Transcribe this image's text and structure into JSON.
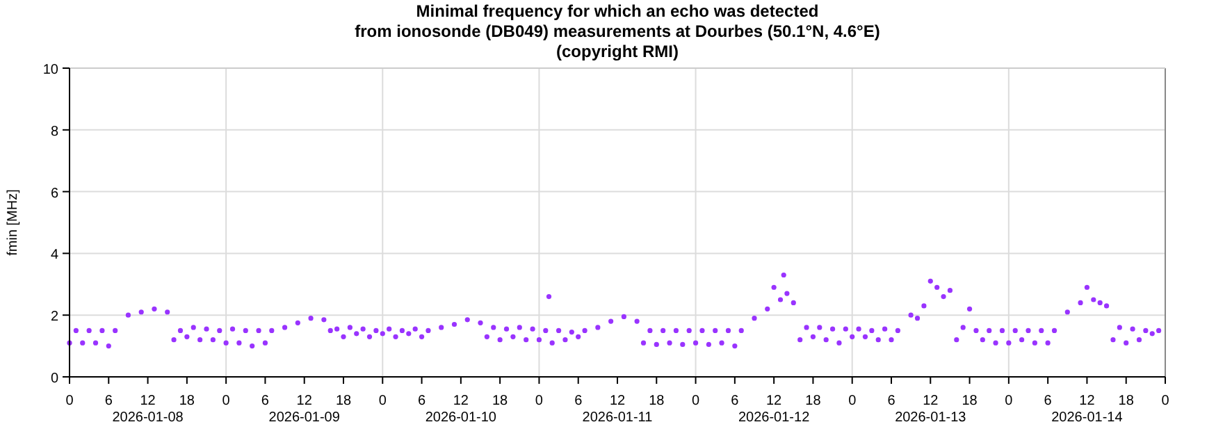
{
  "chart_data": {
    "type": "scatter",
    "title": "Minimal frequency for which an echo was detected\nfrom ionosonde (DB049) measurements at Dourbes (50.1°N, 4.6°E)\n(copyright RMI)",
    "ylabel": "fmin [MHz]",
    "xlim": [
      "2026-01-08T00:00",
      "2026-01-15T00:00"
    ],
    "ylim": [
      0,
      10
    ],
    "yticks": [
      0,
      2,
      4,
      6,
      8,
      10
    ],
    "xticks": [
      {
        "value": "2026-01-08T00:00",
        "label": "0"
      },
      {
        "value": "2026-01-08T06:00",
        "label": "6"
      },
      {
        "value": "2026-01-08T12:00",
        "label": "12\n2026-01-08"
      },
      {
        "value": "2026-01-08T18:00",
        "label": "18"
      },
      {
        "value": "2026-01-09T00:00",
        "label": "0"
      },
      {
        "value": "2026-01-09T06:00",
        "label": "6"
      },
      {
        "value": "2026-01-09T12:00",
        "label": "12\n2026-01-09"
      },
      {
        "value": "2026-01-09T18:00",
        "label": "18"
      },
      {
        "value": "2026-01-10T00:00",
        "label": "0"
      },
      {
        "value": "2026-01-10T06:00",
        "label": "6"
      },
      {
        "value": "2026-01-10T12:00",
        "label": "12\n2026-01-10"
      },
      {
        "value": "2026-01-10T18:00",
        "label": "18"
      },
      {
        "value": "2026-01-11T00:00",
        "label": "0"
      },
      {
        "value": "2026-01-11T06:00",
        "label": "6"
      },
      {
        "value": "2026-01-11T12:00",
        "label": "12\n2026-01-11"
      },
      {
        "value": "2026-01-11T18:00",
        "label": "18"
      },
      {
        "value": "2026-01-12T00:00",
        "label": "0"
      },
      {
        "value": "2026-01-12T06:00",
        "label": "6"
      },
      {
        "value": "2026-01-12T12:00",
        "label": "12\n2026-01-12"
      },
      {
        "value": "2026-01-12T18:00",
        "label": "18"
      },
      {
        "value": "2026-01-13T00:00",
        "label": "0"
      },
      {
        "value": "2026-01-13T06:00",
        "label": "6"
      },
      {
        "value": "2026-01-13T12:00",
        "label": "12\n2026-01-13"
      },
      {
        "value": "2026-01-13T18:00",
        "label": "18"
      },
      {
        "value": "2026-01-14T00:00",
        "label": "0"
      },
      {
        "value": "2026-01-14T06:00",
        "label": "6"
      },
      {
        "value": "2026-01-14T12:00",
        "label": "12\n2026-01-14"
      },
      {
        "value": "2026-01-14T18:00",
        "label": "18"
      },
      {
        "value": "2026-01-15T00:00",
        "label": "0"
      }
    ],
    "grid": true,
    "marker": "circle",
    "series": [
      {
        "color": "#9933ff",
        "x": [
          "2026-01-08T01:00",
          "2026-01-08T03:00",
          "2026-01-08T05:00",
          "2026-01-08T07:00",
          "2026-01-08T09:00",
          "2026-01-08T11:00",
          "2026-01-08T13:00",
          "2026-01-08T15:00",
          "2026-01-08T17:00",
          "2026-01-08T19:00",
          "2026-01-08T21:00",
          "2026-01-08T23:00",
          "2026-01-08T00:00",
          "2026-01-08T02:00",
          "2026-01-08T04:00",
          "2026-01-08T06:00",
          "2026-01-08T16:00",
          "2026-01-08T18:00",
          "2026-01-08T20:00",
          "2026-01-08T22:00",
          "2026-01-09T01:00",
          "2026-01-09T03:00",
          "2026-01-09T05:00",
          "2026-01-09T07:00",
          "2026-01-09T09:00",
          "2026-01-09T11:00",
          "2026-01-09T13:00",
          "2026-01-09T15:00",
          "2026-01-09T17:00",
          "2026-01-09T19:00",
          "2026-01-09T21:00",
          "2026-01-09T23:00",
          "2026-01-09T00:00",
          "2026-01-09T02:00",
          "2026-01-09T04:00",
          "2026-01-09T06:00",
          "2026-01-09T16:00",
          "2026-01-09T18:00",
          "2026-01-09T20:00",
          "2026-01-09T22:00",
          "2026-01-10T01:00",
          "2026-01-10T03:00",
          "2026-01-10T05:00",
          "2026-01-10T07:00",
          "2026-01-10T09:00",
          "2026-01-10T11:00",
          "2026-01-10T13:00",
          "2026-01-10T15:00",
          "2026-01-10T17:00",
          "2026-01-10T19:00",
          "2026-01-10T21:00",
          "2026-01-10T23:00",
          "2026-01-10T00:00",
          "2026-01-10T02:00",
          "2026-01-10T04:00",
          "2026-01-10T06:00",
          "2026-01-10T16:00",
          "2026-01-10T18:00",
          "2026-01-10T20:00",
          "2026-01-10T22:00",
          "2026-01-11T01:00",
          "2026-01-11T03:00",
          "2026-01-11T05:00",
          "2026-01-11T07:00",
          "2026-01-11T09:00",
          "2026-01-11T11:00",
          "2026-01-11T13:00",
          "2026-01-11T15:00",
          "2026-01-11T17:00",
          "2026-01-11T19:00",
          "2026-01-11T21:00",
          "2026-01-11T23:00",
          "2026-01-11T00:00",
          "2026-01-11T02:00",
          "2026-01-11T04:00",
          "2026-01-11T06:00",
          "2026-01-11T16:00",
          "2026-01-11T18:00",
          "2026-01-11T20:00",
          "2026-01-11T22:00",
          "2026-01-11T01:30",
          "2026-01-12T01:00",
          "2026-01-12T03:00",
          "2026-01-12T05:00",
          "2026-01-12T07:00",
          "2026-01-12T09:00",
          "2026-01-12T11:00",
          "2026-01-12T13:00",
          "2026-01-12T15:00",
          "2026-01-12T17:00",
          "2026-01-12T19:00",
          "2026-01-12T21:00",
          "2026-01-12T23:00",
          "2026-01-12T00:00",
          "2026-01-12T02:00",
          "2026-01-12T04:00",
          "2026-01-12T06:00",
          "2026-01-12T16:00",
          "2026-01-12T18:00",
          "2026-01-12T20:00",
          "2026-01-12T22:00",
          "2026-01-12T12:00",
          "2026-01-12T13:30",
          "2026-01-12T14:00",
          "2026-01-13T01:00",
          "2026-01-13T03:00",
          "2026-01-13T05:00",
          "2026-01-13T07:00",
          "2026-01-13T09:00",
          "2026-01-13T11:00",
          "2026-01-13T13:00",
          "2026-01-13T15:00",
          "2026-01-13T17:00",
          "2026-01-13T19:00",
          "2026-01-13T21:00",
          "2026-01-13T23:00",
          "2026-01-13T00:00",
          "2026-01-13T02:00",
          "2026-01-13T04:00",
          "2026-01-13T06:00",
          "2026-01-13T16:00",
          "2026-01-13T18:00",
          "2026-01-13T20:00",
          "2026-01-13T22:00",
          "2026-01-13T12:00",
          "2026-01-13T14:00",
          "2026-01-13T10:00",
          "2026-01-14T01:00",
          "2026-01-14T03:00",
          "2026-01-14T05:00",
          "2026-01-14T07:00",
          "2026-01-14T09:00",
          "2026-01-14T11:00",
          "2026-01-14T13:00",
          "2026-01-14T15:00",
          "2026-01-14T17:00",
          "2026-01-14T19:00",
          "2026-01-14T21:00",
          "2026-01-14T23:00",
          "2026-01-14T00:00",
          "2026-01-14T02:00",
          "2026-01-14T04:00",
          "2026-01-14T06:00",
          "2026-01-14T16:00",
          "2026-01-14T18:00",
          "2026-01-14T20:00",
          "2026-01-14T22:00",
          "2026-01-14T12:00",
          "2026-01-14T14:00"
        ],
        "values": [
          1.5,
          1.5,
          1.5,
          1.5,
          2.0,
          2.1,
          2.2,
          2.1,
          1.5,
          1.6,
          1.55,
          1.5,
          1.1,
          1.1,
          1.1,
          1.0,
          1.2,
          1.3,
          1.2,
          1.2,
          1.55,
          1.5,
          1.5,
          1.5,
          1.6,
          1.75,
          1.9,
          1.85,
          1.55,
          1.6,
          1.55,
          1.5,
          1.1,
          1.1,
          1.0,
          1.1,
          1.5,
          1.3,
          1.4,
          1.3,
          1.55,
          1.5,
          1.55,
          1.5,
          1.6,
          1.7,
          1.85,
          1.75,
          1.6,
          1.55,
          1.6,
          1.55,
          1.4,
          1.3,
          1.4,
          1.3,
          1.3,
          1.2,
          1.3,
          1.2,
          1.5,
          1.5,
          1.45,
          1.5,
          1.6,
          1.8,
          1.95,
          1.8,
          1.5,
          1.5,
          1.5,
          1.5,
          1.2,
          1.1,
          1.2,
          1.3,
          1.1,
          1.05,
          1.1,
          1.05,
          2.6,
          1.5,
          1.5,
          1.5,
          1.5,
          1.9,
          2.2,
          2.5,
          2.4,
          1.6,
          1.6,
          1.55,
          1.55,
          1.1,
          1.05,
          1.1,
          1.0,
          1.2,
          1.3,
          1.2,
          1.1,
          2.9,
          3.3,
          2.7,
          1.55,
          1.5,
          1.55,
          1.5,
          2.0,
          2.3,
          2.9,
          2.8,
          1.6,
          1.5,
          1.5,
          1.5,
          1.3,
          1.3,
          1.2,
          1.2,
          1.2,
          2.2,
          1.2,
          1.1,
          3.1,
          2.6,
          1.9,
          1.5,
          1.5,
          1.5,
          1.5,
          2.1,
          2.4,
          2.5,
          2.3,
          1.6,
          1.55,
          1.5,
          1.5,
          1.1,
          1.2,
          1.1,
          1.1,
          1.2,
          1.1,
          1.2,
          1.4,
          2.9,
          2.4
        ]
      }
    ]
  }
}
